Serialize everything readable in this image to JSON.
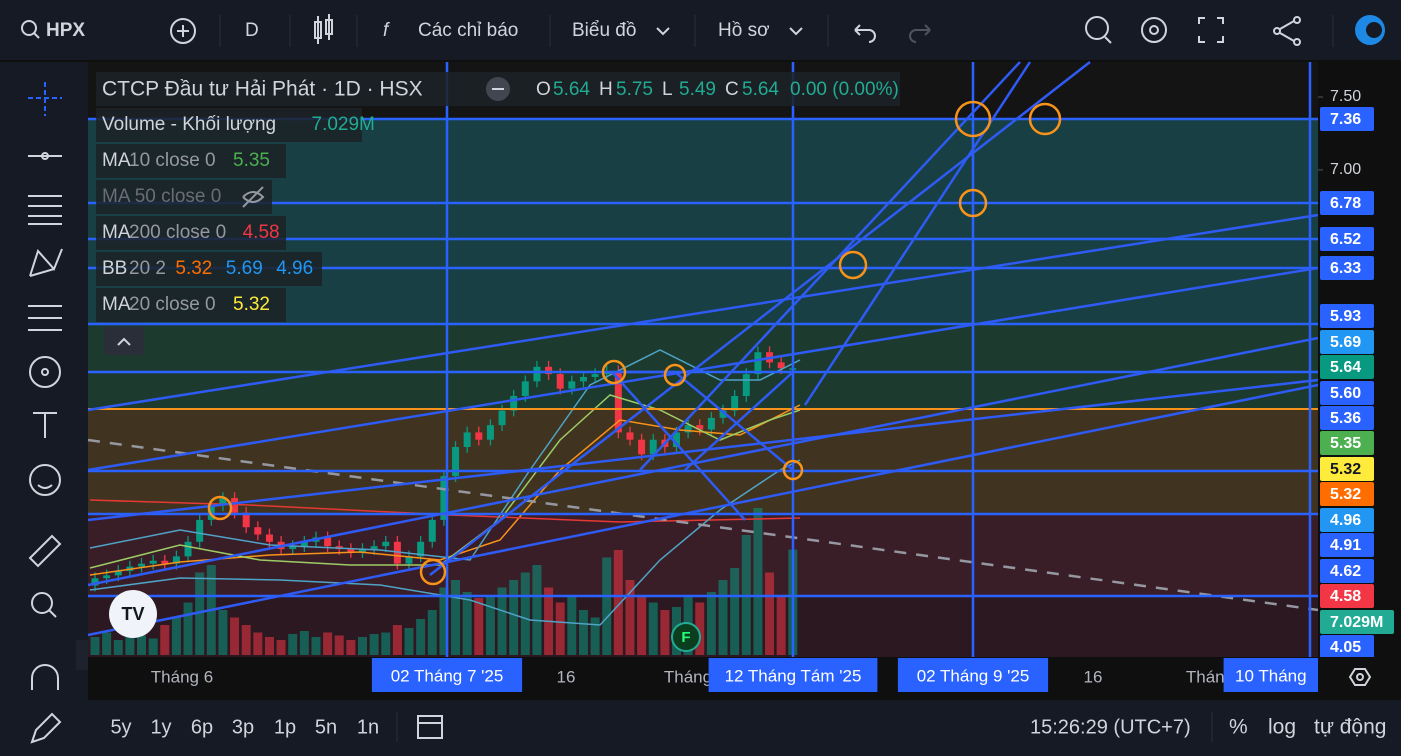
{
  "toolbar": {
    "symbol": "HPX",
    "interval": "D",
    "indicators": "Các chỉ báo",
    "chart": "Biểu đồ",
    "profile": "Hồ sơ"
  },
  "legend": {
    "title": "CTCP Đầu tư Hải Phát · 1D · HSX",
    "ohlc": [
      {
        "key": "O",
        "value": "5.64"
      },
      {
        "key": "H",
        "value": "5.75"
      },
      {
        "key": "L",
        "value": "5.49"
      },
      {
        "key": "C",
        "value": "5.64"
      }
    ],
    "change": "0.00 (0.00%)",
    "indicators": [
      {
        "name": "Volume - Khối lượng",
        "params": "",
        "values": [
          "7.029M"
        ],
        "colors": [
          "#22ab94"
        ]
      },
      {
        "name": "MA",
        "params": "10 close 0",
        "values": [
          "5.35"
        ],
        "colors": [
          "#4caf50"
        ]
      },
      {
        "name": "MA 50 close 0",
        "params": "",
        "values": [],
        "colors": [],
        "hidden": true
      },
      {
        "name": "MA",
        "params": "200 close 0",
        "values": [
          "4.58"
        ],
        "colors": [
          "#f23645"
        ]
      },
      {
        "name": "BB",
        "params": "20 2",
        "values": [
          "5.32",
          "5.69",
          "4.96"
        ],
        "colors": [
          "#ff6d00",
          "#2196f3",
          "#2196f3"
        ]
      },
      {
        "name": "MA",
        "params": "20 close 0",
        "values": [
          "5.32"
        ],
        "colors": [
          "#ffeb3b"
        ]
      }
    ]
  },
  "chart": {
    "event_marker": "F"
  },
  "price_badges": [
    {
      "label": "7.36",
      "color": "#2962ff"
    },
    {
      "label": "6.78",
      "color": "#2962ff"
    },
    {
      "label": "6.52",
      "color": "#2962ff"
    },
    {
      "label": "6.33",
      "color": "#2962ff"
    },
    {
      "label": "5.93",
      "color": "#2962ff"
    },
    {
      "label": "5.69",
      "color": "#2196f3"
    },
    {
      "label": "5.64",
      "color": "#089981"
    },
    {
      "label": "5.60",
      "color": "#2962ff"
    },
    {
      "label": "5.36",
      "color": "#2962ff"
    },
    {
      "label": "5.35",
      "color": "#4caf50"
    },
    {
      "label": "5.32",
      "color": "#ffeb3b"
    },
    {
      "label": "5.32",
      "color": "#ff6d00"
    },
    {
      "label": "4.96",
      "color": "#2196f3"
    },
    {
      "label": "4.91",
      "color": "#2962ff"
    },
    {
      "label": "4.62",
      "color": "#2962ff"
    },
    {
      "label": "4.58",
      "color": "#f23645"
    },
    {
      "label": "4.05",
      "color": "#2962ff"
    }
  ],
  "volume_badge": {
    "label": "7.029M",
    "color": "#22ab94"
  },
  "time_labels": [
    {
      "label": "Tháng 6",
      "highlight": false
    },
    {
      "label": "02 Tháng 7 '25",
      "highlight": true
    },
    {
      "label": "16",
      "highlight": false
    },
    {
      "label": "Tháng",
      "highlight": false
    },
    {
      "label": "12 Tháng Tám '25",
      "highlight": true
    },
    {
      "label": "02 Tháng 9 '25",
      "highlight": true
    },
    {
      "label": "16",
      "highlight": false
    },
    {
      "label": "Tháng",
      "highlight": false
    },
    {
      "label": "10 Tháng",
      "highlight": true
    }
  ],
  "bottom_bar": {
    "ranges": [
      "5y",
      "1y",
      "6p",
      "3p",
      "1p",
      "5n",
      "1n"
    ],
    "time": "15:26:29 (UTC+7)",
    "percent": "%",
    "log": "log",
    "auto": "tự động"
  },
  "chart_data": {
    "type": "candlestick",
    "ylim": [
      3.66,
      7.74
    ],
    "yticks": [
      {
        "value": 7.5,
        "label": "7.50"
      },
      {
        "value": 7,
        "label": "7.00"
      }
    ],
    "up_color": "#089981",
    "down_color": "#f23645",
    "open": [
      4.15,
      4.2,
      4.22,
      4.25,
      4.28,
      4.3,
      4.32,
      4.3,
      4.35,
      4.45,
      4.6,
      4.7,
      4.75,
      4.65,
      4.55,
      4.5,
      4.45,
      4.4,
      4.42,
      4.45,
      4.48,
      4.42,
      4.4,
      4.38,
      4.4,
      4.42,
      4.45,
      4.3,
      4.35,
      4.45,
      4.6,
      4.9,
      5.1,
      5.2,
      5.15,
      5.25,
      5.35,
      5.45,
      5.55,
      5.65,
      5.6,
      5.5,
      5.55,
      5.58,
      5.6,
      5.62,
      5.2,
      5.15,
      5.05,
      5.15,
      5.1,
      5.2,
      5.25,
      5.22,
      5.3,
      5.35,
      5.45,
      5.6,
      5.75,
      5.68,
      5.64
    ],
    "high": [
      4.24,
      4.26,
      4.29,
      4.32,
      4.34,
      4.36,
      4.36,
      4.39,
      4.49,
      4.64,
      4.74,
      4.79,
      4.79,
      4.69,
      4.59,
      4.54,
      4.49,
      4.46,
      4.49,
      4.52,
      4.52,
      4.46,
      4.44,
      4.44,
      4.46,
      4.49,
      4.49,
      4.39,
      4.49,
      4.64,
      4.94,
      5.14,
      5.24,
      5.24,
      5.29,
      5.39,
      5.49,
      5.59,
      5.69,
      5.69,
      5.64,
      5.59,
      5.62,
      5.64,
      5.66,
      5.66,
      5.24,
      5.19,
      5.19,
      5.19,
      5.24,
      5.29,
      5.29,
      5.34,
      5.39,
      5.49,
      5.64,
      5.79,
      5.79,
      5.72,
      5.75
    ],
    "low": [
      4.11,
      4.16,
      4.18,
      4.21,
      4.24,
      4.26,
      4.26,
      4.26,
      4.31,
      4.41,
      4.56,
      4.66,
      4.61,
      4.51,
      4.46,
      4.41,
      4.36,
      4.36,
      4.38,
      4.41,
      4.38,
      4.36,
      4.34,
      4.34,
      4.36,
      4.38,
      4.26,
      4.26,
      4.31,
      4.41,
      4.56,
      4.86,
      5.06,
      5.11,
      5.11,
      5.21,
      5.31,
      5.41,
      5.51,
      5.56,
      5.46,
      5.46,
      5.51,
      5.54,
      5.56,
      5.16,
      5.11,
      5.01,
      5.01,
      5.06,
      5.06,
      5.16,
      5.18,
      5.18,
      5.26,
      5.31,
      5.41,
      5.56,
      5.64,
      5.6,
      5.49
    ],
    "close": [
      4.2,
      4.22,
      4.25,
      4.28,
      4.3,
      4.32,
      4.3,
      4.35,
      4.45,
      4.6,
      4.7,
      4.75,
      4.65,
      4.55,
      4.5,
      4.45,
      4.4,
      4.42,
      4.45,
      4.48,
      4.42,
      4.4,
      4.38,
      4.4,
      4.42,
      4.45,
      4.3,
      4.35,
      4.45,
      4.6,
      4.9,
      5.1,
      5.2,
      5.15,
      5.25,
      5.35,
      5.45,
      5.55,
      5.65,
      5.6,
      5.5,
      5.55,
      5.58,
      5.6,
      5.62,
      5.2,
      5.15,
      5.05,
      5.15,
      5.1,
      5.2,
      5.25,
      5.22,
      5.3,
      5.35,
      5.45,
      5.6,
      5.75,
      5.68,
      5.64,
      5.64
    ],
    "volume_ylim": [
      0,
      10
    ],
    "volume": [
      1.2,
      1.5,
      1,
      1.8,
      1.3,
      1.1,
      2,
      2.5,
      3.5,
      5.5,
      6,
      3,
      2.5,
      2,
      1.5,
      1.2,
      1,
      1.4,
      1.6,
      1.2,
      1.5,
      1.3,
      1,
      1.2,
      1.4,
      1.5,
      2,
      1.8,
      2.4,
      3,
      4.5,
      5,
      4.2,
      3.8,
      4,
      4.5,
      5,
      5.5,
      6,
      4.5,
      3.5,
      4,
      3,
      2.5,
      6.5,
      7,
      5,
      4,
      3.5,
      3,
      3.2,
      4,
      3.5,
      4.2,
      5,
      5.8,
      8,
      9.8,
      5.5,
      4,
      7.029
    ]
  }
}
